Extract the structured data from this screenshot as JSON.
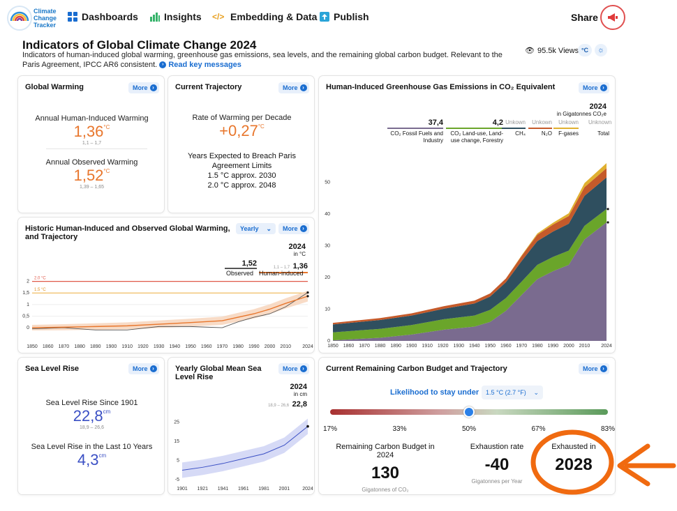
{
  "nav": {
    "logo_text": "Climate Change Tracker",
    "items": [
      {
        "label": "Dashboards",
        "icon": "grid-icon"
      },
      {
        "label": "Insights",
        "icon": "bar-chart-icon"
      },
      {
        "label": "Embedding & Data",
        "icon": "code-icon"
      },
      {
        "label": "Publish",
        "icon": "upload-icon"
      }
    ],
    "share_label": "Share",
    "share_icon": "megaphone-icon"
  },
  "header": {
    "title": "Indicators of Global Climate Change 2024",
    "subtitle": "Indicators of human-induced global warming, greenhouse gas emissions, sea levels, and the remaining global carbon budget. Relevant to the Paris Agreement, IPCC AR6 consistent.",
    "read_more": "Read key messages",
    "views": "95.5k Views",
    "unit_toggle": "°C"
  },
  "more_label": "More",
  "global_warming": {
    "title": "Global Warming",
    "annual_label": "Annual Human-Induced Warming",
    "annual_value": "1,36",
    "annual_unit": "°C",
    "annual_range": "1,1 – 1,7",
    "observed_label": "Annual Observed Warming",
    "observed_value": "1,52",
    "observed_unit": "°C",
    "observed_range": "1,39 – 1,65"
  },
  "trajectory": {
    "title": "Current Trajectory",
    "rate_label": "Rate of Warming per Decade",
    "rate_value": "+0,27",
    "rate_unit": "°C",
    "breach_label": "Years Expected to Breach Paris Agreement Limits",
    "breach_15": "1.5 °C approx. 2030",
    "breach_20": "2.0 °C approx. 2048"
  },
  "historic": {
    "title": "Historic Human-Induced and Observed Global Warming, and Trajectory",
    "dropdown": "Yearly",
    "year": "2024",
    "unit": "in °C",
    "observed_value": "1,52",
    "observed_label": "Observed",
    "human_range": "1,1 – 1,7",
    "human_value": "1,36",
    "human_label": "Human-induced",
    "line20": "2.0 °C",
    "line15": "1.5 °C"
  },
  "ghg": {
    "title": "Human-Induced Greenhouse Gas Emissions in CO₂ Equivalent",
    "year": "2024",
    "unit": "in Gigatonnes CO₂e",
    "legend": [
      {
        "value": "37,4",
        "label": "CO₂ Fossil Fuels and Industry",
        "color": "#7a6b8f"
      },
      {
        "value": "4,2",
        "label": "CO₂ Land-use, Land-use change, Forestry",
        "color": "#6aa52a"
      },
      {
        "value": "Unkown",
        "label": "CH₄",
        "color": "#2f4f5f"
      },
      {
        "value": "Unkown",
        "label": "N₂O",
        "color": "#c55a2a"
      },
      {
        "value": "Unkown",
        "label": "F-gases",
        "color": "#e0b030"
      },
      {
        "value": "Unknown",
        "label": "Total",
        "color": "#ffffff"
      }
    ]
  },
  "sea_level": {
    "title": "Sea Level Rise",
    "since_label": "Sea Level Rise Since 1901",
    "since_value": "22,8",
    "since_unit": "cm",
    "since_range": "18,9 – 26,6",
    "last10_label": "Sea Level Rise in the Last 10 Years",
    "last10_value": "4,3",
    "last10_unit": "cm"
  },
  "gmsl": {
    "title": "Yearly Global Mean Sea Level Rise",
    "year": "2024",
    "unit": "in cm",
    "range": "18,9 – 26,6",
    "value": "22,8"
  },
  "budget": {
    "title": "Current Remaining Carbon Budget and Trajectory",
    "likelihood_label": "Likelihood to stay under",
    "likelihood_select": "1.5 °C (2.7 °F)",
    "slider_value": 0.5,
    "slider_ticks": [
      "17%",
      "33%",
      "50%",
      "67%",
      "83%"
    ],
    "remaining_label": "Remaining Carbon Budget in 2024",
    "remaining_value": "130",
    "remaining_unit": "Gigatonnes of CO₂",
    "rate_label": "Exhaustion rate",
    "rate_value": "-40",
    "rate_unit": "Gigatonnes per Year",
    "exhausted_label": "Exhausted in",
    "exhausted_value": "2028"
  },
  "chart_data": [
    {
      "type": "line",
      "title": "Historic Human-Induced and Observed Global Warming, and Trajectory",
      "x_ticks": [
        "1850",
        "1860",
        "1870",
        "1880",
        "1890",
        "1900",
        "1910",
        "1920",
        "1930",
        "1940",
        "1950",
        "1960",
        "1970",
        "1980",
        "1990",
        "2000",
        "2010",
        "2024"
      ],
      "y_ticks": [
        "0",
        "0,5",
        "1",
        "1,5",
        "2"
      ],
      "ylim": [
        -0.3,
        2.2
      ],
      "series": [
        {
          "name": "Observed",
          "x": [
            1850,
            1870,
            1890,
            1910,
            1930,
            1950,
            1970,
            1980,
            1990,
            2000,
            2010,
            2024
          ],
          "y": [
            -0.05,
            0.0,
            -0.1,
            -0.1,
            0.05,
            0.05,
            0.0,
            0.25,
            0.45,
            0.6,
            0.9,
            1.52
          ]
        },
        {
          "name": "Human-induced",
          "x": [
            1850,
            1870,
            1890,
            1910,
            1930,
            1950,
            1970,
            1980,
            1990,
            2000,
            2010,
            2024
          ],
          "y": [
            0.0,
            0.02,
            0.05,
            0.08,
            0.15,
            0.22,
            0.3,
            0.45,
            0.6,
            0.8,
            1.05,
            1.36
          ]
        }
      ]
    },
    {
      "type": "area",
      "title": "Human-Induced Greenhouse Gas Emissions in CO₂ Equivalent",
      "x_ticks": [
        "1850",
        "1860",
        "1870",
        "1880",
        "1890",
        "1900",
        "1910",
        "1920",
        "1930",
        "1940",
        "1950",
        "1960",
        "1970",
        "1980",
        "1990",
        "2000",
        "2010",
        "2024"
      ],
      "y_ticks": [
        "0",
        "10",
        "20",
        "30",
        "40",
        "50"
      ],
      "ylim": [
        0,
        55
      ],
      "x": [
        1850,
        1880,
        1900,
        1920,
        1940,
        1950,
        1960,
        1970,
        1980,
        1990,
        2000,
        2010,
        2024
      ],
      "series": [
        {
          "name": "CO₂ Fossil Fuels and Industry",
          "values": [
            0.2,
            1,
            2,
            3.5,
            4.5,
            6,
            9.5,
            14.5,
            19.5,
            22,
            24,
            32,
            37.4
          ]
        },
        {
          "name": "CO₂ Land-use, Land-use change, Forestry",
          "values": [
            2.5,
            2.8,
            3,
            3.3,
            3.5,
            3.8,
            4,
            4.2,
            4.5,
            4.5,
            4.5,
            4.3,
            4.2
          ]
        },
        {
          "name": "CH₄",
          "values": [
            2.5,
            2.8,
            3,
            3.3,
            3.8,
            4.2,
            5,
            6.5,
            7.5,
            8,
            8.5,
            9.5,
            10
          ]
        },
        {
          "name": "N₂O",
          "values": [
            0.5,
            0.6,
            0.7,
            0.8,
            0.9,
            1,
            1.2,
            1.6,
            2,
            2.2,
            2.4,
            2.7,
            2.9
          ]
        },
        {
          "name": "F-gases",
          "values": [
            0,
            0,
            0,
            0,
            0,
            0,
            0,
            0.2,
            0.4,
            0.6,
            0.9,
            1.3,
            1.6
          ]
        }
      ]
    },
    {
      "type": "line",
      "title": "Yearly Global Mean Sea Level Rise",
      "x_ticks": [
        "1901",
        "1921",
        "1941",
        "1961",
        "1981",
        "2001",
        "2024"
      ],
      "y_ticks": [
        "-5",
        "5",
        "15",
        "25"
      ],
      "ylim": [
        -6,
        27
      ],
      "series": [
        {
          "name": "Sea level",
          "x": [
            1901,
            1921,
            1941,
            1961,
            1981,
            2001,
            2024
          ],
          "y": [
            0,
            1.5,
            3.5,
            6,
            8.5,
            13,
            22.8
          ]
        }
      ]
    }
  ]
}
